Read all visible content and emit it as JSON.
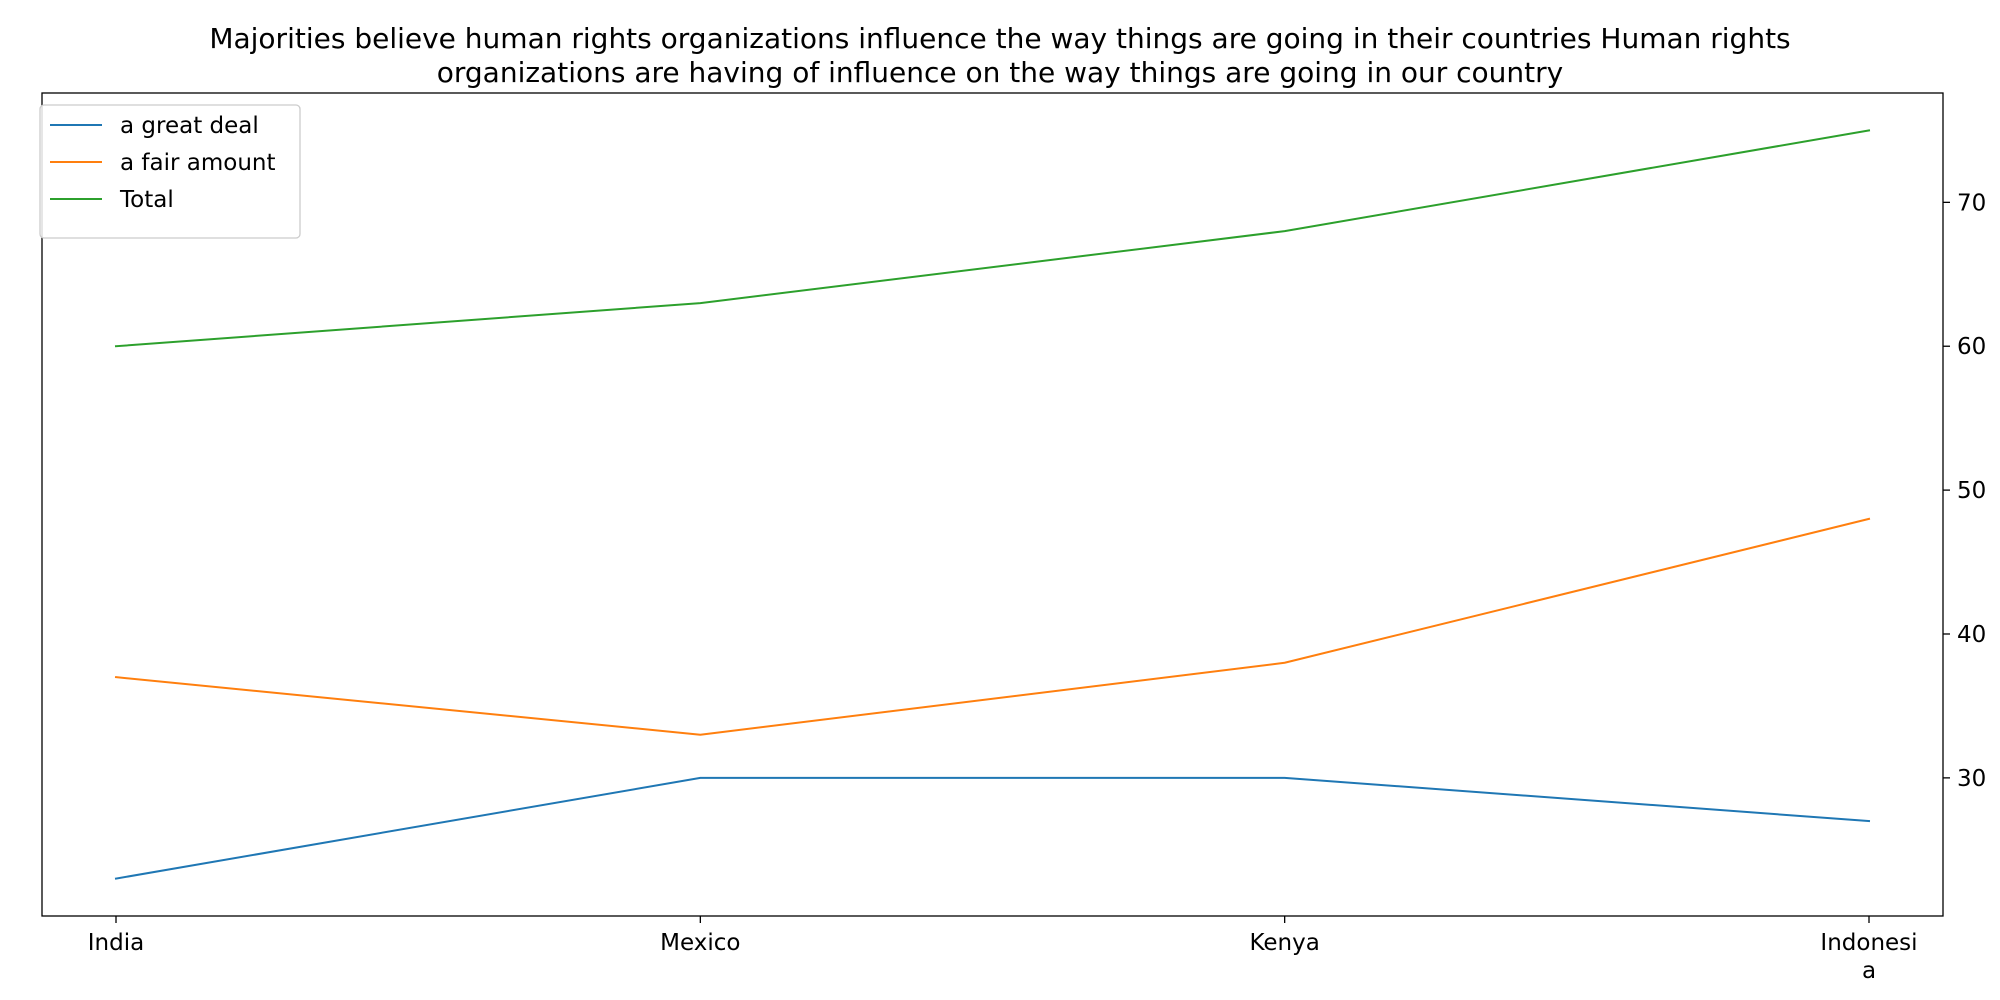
{
  "chart_data": {
    "type": "line",
    "title_lines": [
      "Majorities believe human rights organizations influence the way things are going in their countries Human rights",
      "organizations are having of influence on the way things are going in our country"
    ],
    "categories": [
      "India",
      "Mexico",
      "Kenya",
      "Indonesia"
    ],
    "category_label_lines": [
      [
        "India"
      ],
      [
        "Mexico"
      ],
      [
        "Kenya"
      ],
      [
        "Indonesi",
        "a"
      ]
    ],
    "series": [
      {
        "name": "a great deal",
        "values": [
          23,
          30,
          30,
          27
        ],
        "color": "#1f77b4"
      },
      {
        "name": "a fair amount",
        "values": [
          37,
          33,
          38,
          48
        ],
        "color": "#ff7f0e"
      },
      {
        "name": "Total",
        "values": [
          60,
          63,
          68,
          75
        ],
        "color": "#2ca02c"
      }
    ],
    "y_axis_side": "right",
    "y_ticks": [
      30,
      40,
      50,
      60,
      70
    ],
    "ylim": [
      20.4,
      77.6
    ],
    "grid": false,
    "legend_position": "top-left"
  }
}
